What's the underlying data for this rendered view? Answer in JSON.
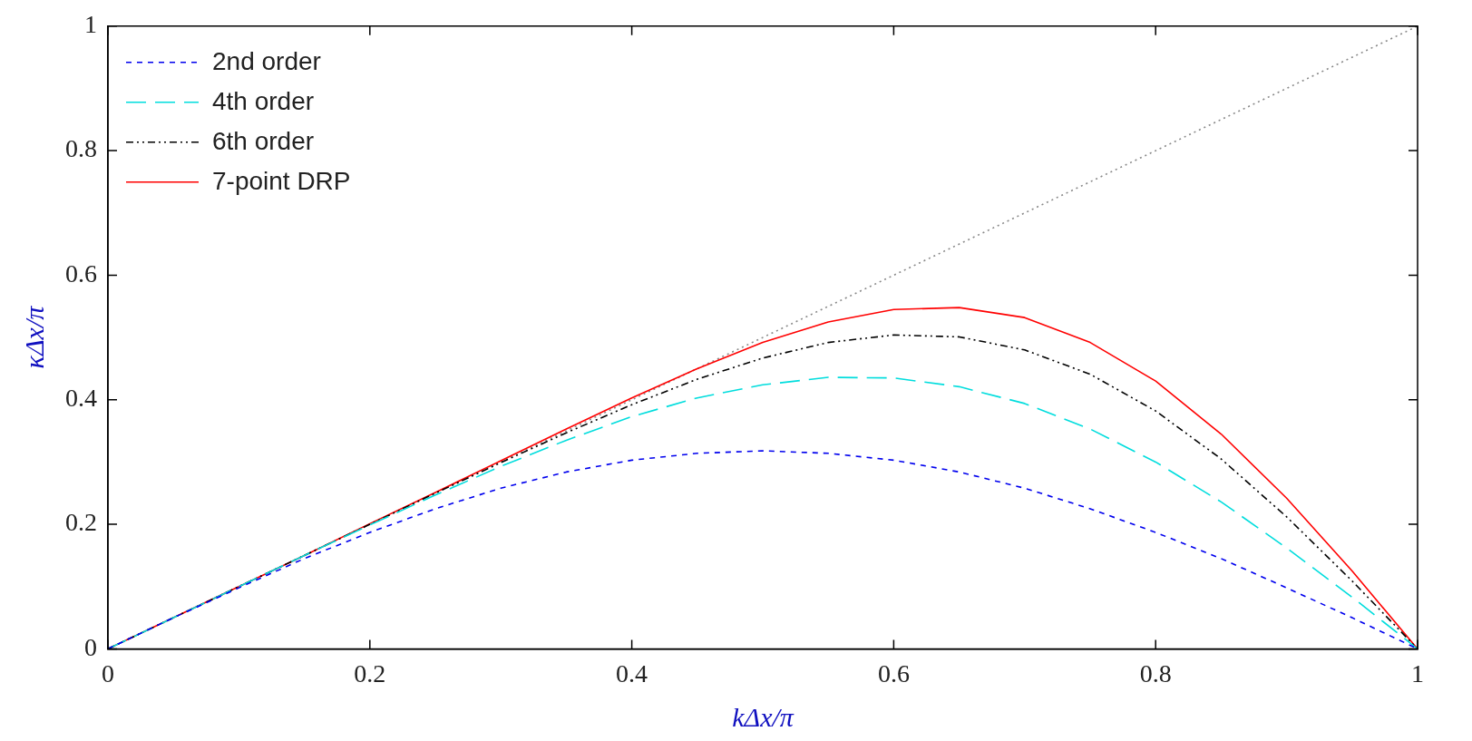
{
  "chart_data": {
    "type": "line",
    "xlabel": "kΔx/π",
    "ylabel": "κΔx/π",
    "xlim": [
      0,
      1
    ],
    "ylim": [
      0,
      1
    ],
    "xticks": [
      0,
      0.2,
      0.4,
      0.6,
      0.8,
      1
    ],
    "yticks": [
      0,
      0.2,
      0.4,
      0.6,
      0.8,
      1
    ],
    "grid": false,
    "legend": "top left",
    "marker": "none",
    "x": [
      0,
      0.05,
      0.1,
      0.15,
      0.2,
      0.25,
      0.3,
      0.35,
      0.4,
      0.45,
      0.5,
      0.55,
      0.6,
      0.65,
      0.7,
      0.75,
      0.8,
      0.85,
      0.9,
      0.95,
      1
    ],
    "series": [
      {
        "name": "2nd order",
        "color": "#0000ee",
        "line_style": "dashed",
        "values": [
          0,
          0.05,
          0.098,
          0.145,
          0.187,
          0.225,
          0.258,
          0.284,
          0.303,
          0.314,
          0.318,
          0.314,
          0.303,
          0.284,
          0.258,
          0.225,
          0.187,
          0.145,
          0.098,
          0.05,
          0
        ]
      },
      {
        "name": "4th order",
        "color": "#00dddd",
        "line_style": "dashed",
        "values": [
          0,
          0.05,
          0.1,
          0.15,
          0.199,
          0.247,
          0.293,
          0.335,
          0.373,
          0.403,
          0.424,
          0.436,
          0.435,
          0.421,
          0.394,
          0.353,
          0.3,
          0.236,
          0.162,
          0.083,
          0
        ]
      },
      {
        "name": "6th order",
        "color": "#000000",
        "line_style": "dashed",
        "values": [
          0,
          0.05,
          0.1,
          0.15,
          0.2,
          0.25,
          0.299,
          0.347,
          0.392,
          0.433,
          0.467,
          0.492,
          0.504,
          0.501,
          0.48,
          0.441,
          0.382,
          0.305,
          0.212,
          0.109,
          0
        ]
      },
      {
        "name": "7-point DRP",
        "color": "#ff0000",
        "line_style": "solid",
        "values": [
          0,
          0.05,
          0.1,
          0.15,
          0.201,
          0.251,
          0.302,
          0.353,
          0.403,
          0.45,
          0.492,
          0.525,
          0.545,
          0.548,
          0.532,
          0.492,
          0.43,
          0.345,
          0.242,
          0.125,
          0
        ]
      },
      {
        "color": "#888888",
        "line_style": "dotted",
        "x": [
          0,
          1
        ],
        "values": [
          0,
          1
        ]
      }
    ]
  }
}
